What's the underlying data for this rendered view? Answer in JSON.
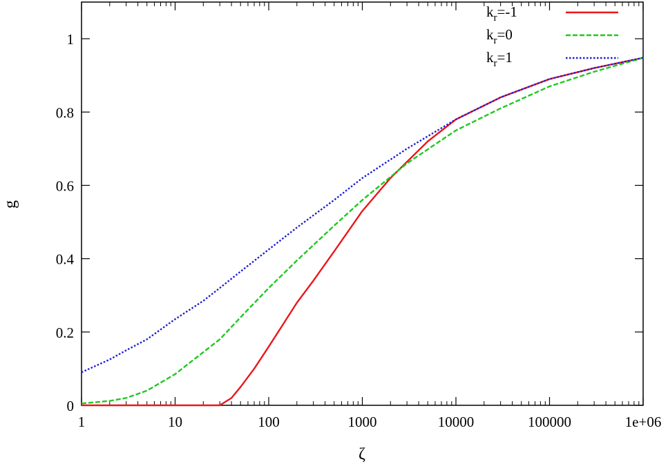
{
  "chart_data": {
    "type": "line",
    "title": "",
    "xlabel": "ζ",
    "ylabel": "g",
    "xscale": "log",
    "xlim": [
      1,
      1000000
    ],
    "ylim": [
      0,
      1.1
    ],
    "grid": false,
    "legend_position": "top-right",
    "x_ticks": [
      {
        "value": 1,
        "label": "1"
      },
      {
        "value": 10,
        "label": "10"
      },
      {
        "value": 100,
        "label": "100"
      },
      {
        "value": 1000,
        "label": "1000"
      },
      {
        "value": 10000,
        "label": "10000"
      },
      {
        "value": 100000,
        "label": "100000"
      },
      {
        "value": 1000000,
        "label": "1e+06"
      }
    ],
    "y_ticks": [
      {
        "value": 0,
        "label": "0"
      },
      {
        "value": 0.2,
        "label": "0.2"
      },
      {
        "value": 0.4,
        "label": "0.4"
      },
      {
        "value": 0.6,
        "label": "0.6"
      },
      {
        "value": 0.8,
        "label": "0.8"
      },
      {
        "value": 1,
        "label": "1"
      }
    ],
    "series": [
      {
        "label_main": "k",
        "label_sub": "r",
        "label_tail": "=-1",
        "color": "#e8171b",
        "dash": "solid",
        "x": [
          1,
          30,
          40,
          50,
          70,
          100,
          150,
          200,
          300,
          500,
          1000,
          2000,
          5000,
          10000,
          30000,
          100000,
          300000,
          1000000
        ],
        "y": [
          0,
          0,
          0.02,
          0.05,
          0.1,
          0.16,
          0.23,
          0.28,
          0.34,
          0.42,
          0.53,
          0.62,
          0.72,
          0.78,
          0.84,
          0.89,
          0.92,
          0.948
        ]
      },
      {
        "label_main": "k",
        "label_sub": "r",
        "label_tail": "=0",
        "color": "#1ec81e",
        "dash": "dashed",
        "x": [
          1,
          2,
          3,
          5,
          10,
          20,
          30,
          50,
          100,
          200,
          500,
          1000,
          3000,
          10000,
          30000,
          100000,
          300000,
          1000000
        ],
        "y": [
          0.005,
          0.012,
          0.02,
          0.04,
          0.085,
          0.145,
          0.18,
          0.24,
          0.32,
          0.395,
          0.49,
          0.56,
          0.66,
          0.75,
          0.81,
          0.87,
          0.91,
          0.948
        ]
      },
      {
        "label_main": "k",
        "label_sub": "r",
        "label_tail": "=1",
        "color": "#1c1cd6",
        "dash": "dotted",
        "x": [
          1,
          2,
          3,
          5,
          10,
          20,
          30,
          50,
          100,
          200,
          500,
          1000,
          3000,
          10000,
          30000,
          100000,
          300000,
          1000000
        ],
        "y": [
          0.09,
          0.125,
          0.15,
          0.18,
          0.235,
          0.285,
          0.32,
          0.365,
          0.425,
          0.485,
          0.56,
          0.62,
          0.7,
          0.78,
          0.84,
          0.89,
          0.92,
          0.948
        ]
      }
    ]
  }
}
